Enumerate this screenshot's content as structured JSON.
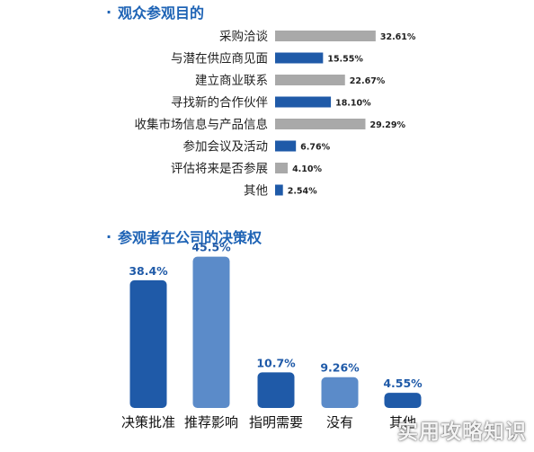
{
  "chart_data": [
    {
      "type": "bar",
      "orientation": "horizontal",
      "title": "观众参观目的",
      "categories": [
        "采购洽谈",
        "与潜在供应商见面",
        "建立商业联系",
        "寻找新的合作伙伴",
        "收集市场信息与产品信息",
        "参加会议及活动",
        "评估将来是否参展",
        "其他"
      ],
      "values": [
        32.61,
        15.55,
        22.67,
        18.1,
        29.29,
        6.76,
        4.1,
        2.54
      ],
      "value_labels": [
        "32.61%",
        "15.55%",
        "22.67%",
        "18.10%",
        "29.29%",
        "6.76%",
        "4.10%",
        "2.54%"
      ],
      "colors": [
        "#a9a9a9",
        "#1f5aa8",
        "#a9a9a9",
        "#1f5aa8",
        "#a9a9a9",
        "#1f5aa8",
        "#a9a9a9",
        "#1f5aa8"
      ],
      "xlim": [
        0,
        35
      ],
      "grid": false
    },
    {
      "type": "bar",
      "title": "参观者在公司的决策权",
      "categories": [
        "决策批准",
        "推荐影响",
        "指明需要",
        "没有",
        "其他"
      ],
      "values": [
        38.4,
        45.5,
        10.7,
        9.26,
        4.55
      ],
      "value_labels": [
        "38.4%",
        "45.5%",
        "10.7%",
        "9.26%",
        "4.55%"
      ],
      "colors": [
        "#1f5aa8",
        "#5b8bc9",
        "#1f5aa8",
        "#5b8bc9",
        "#1f5aa8"
      ],
      "ylim": [
        0,
        50
      ],
      "grid": false
    }
  ],
  "watermark": "实用攻略知识"
}
